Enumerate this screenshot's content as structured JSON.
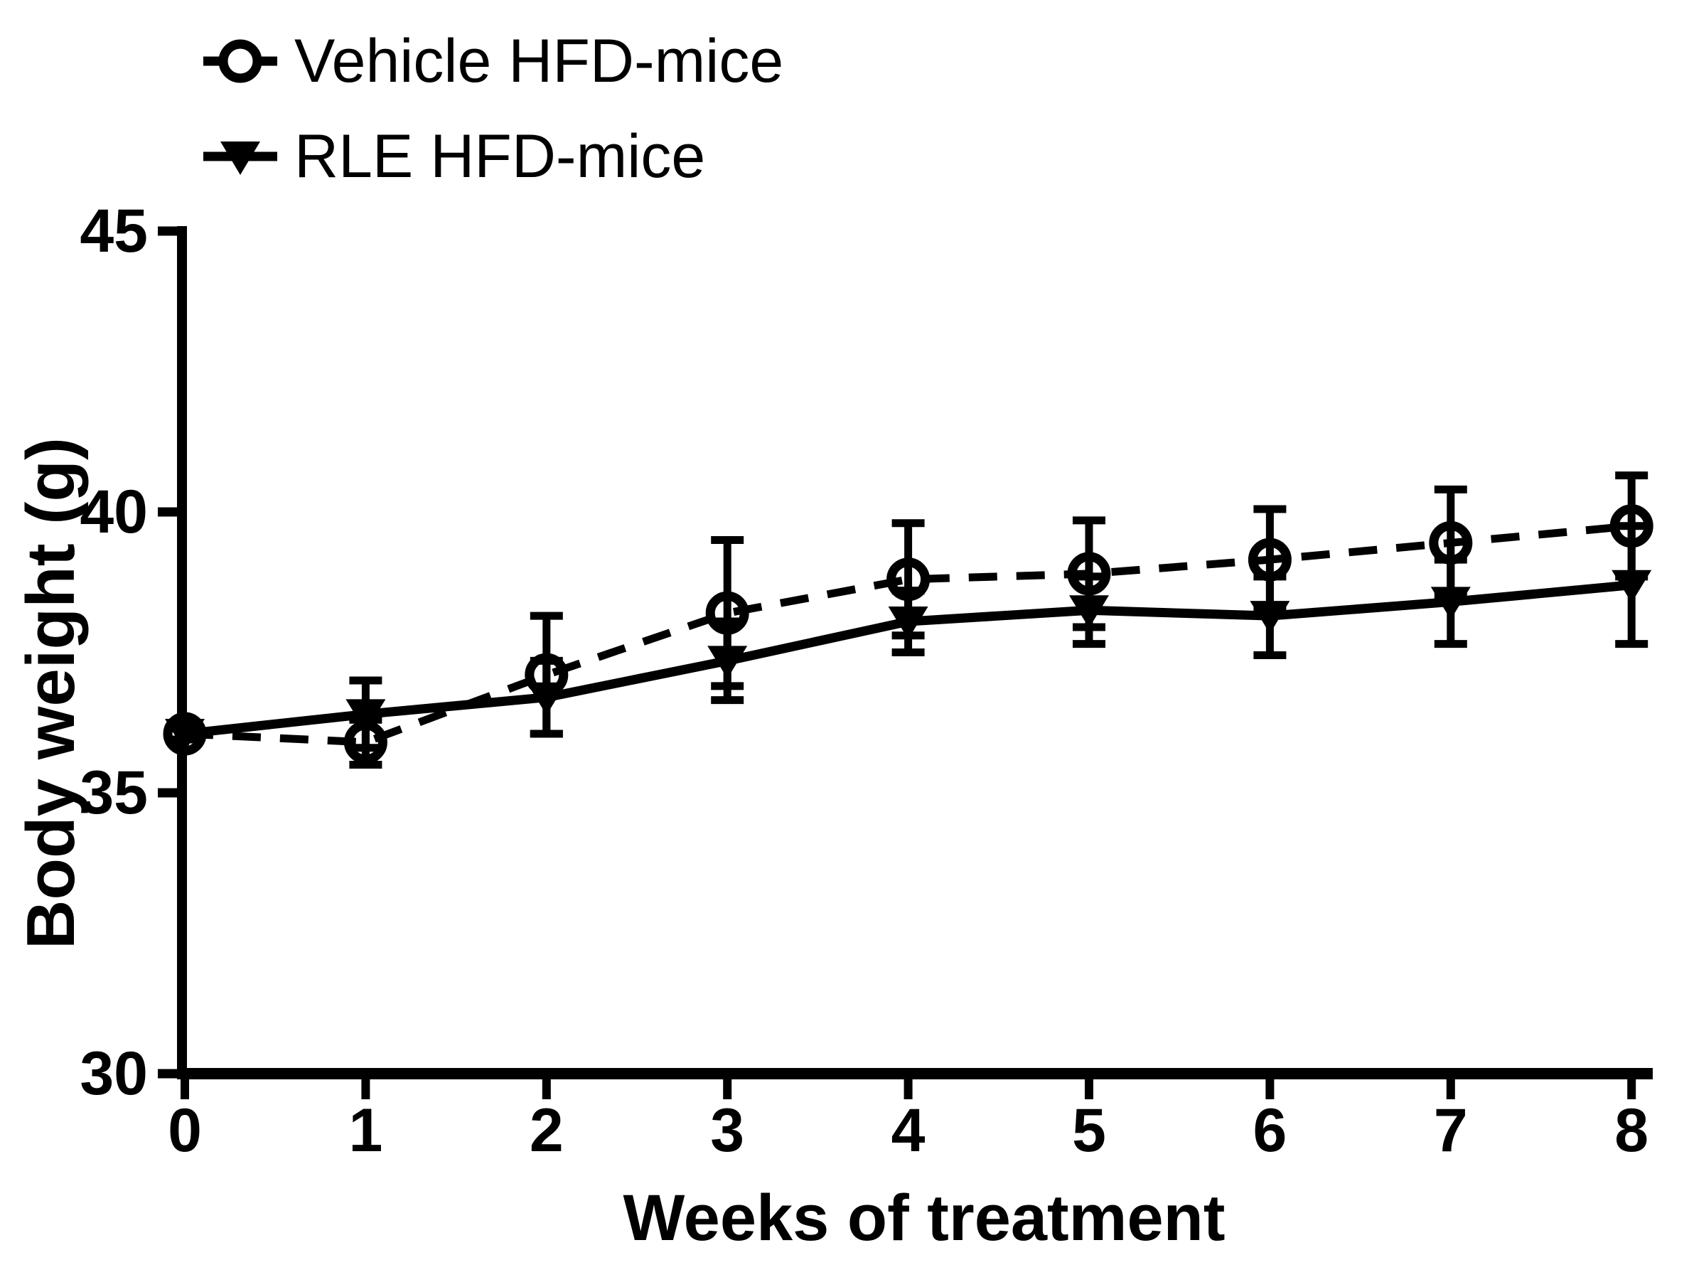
{
  "chart_data": {
    "type": "line",
    "title": "",
    "xlabel": "Weeks of treatment",
    "ylabel": "Body weight (g)",
    "x": [
      0,
      1,
      2,
      3,
      4,
      5,
      6,
      7,
      8
    ],
    "xtick_labels": [
      "0",
      "1",
      "2",
      "3",
      "4",
      "5",
      "6",
      "7",
      "8"
    ],
    "ytick_values": [
      30,
      35,
      40,
      45
    ],
    "ytick_labels": [
      "30",
      "35",
      "40",
      "45"
    ],
    "xlim": [
      0,
      8
    ],
    "ylim": [
      30,
      45
    ],
    "grid": false,
    "legend_position": "top-left",
    "error_bars": "sem, symmetric, with caps",
    "foreground_color": "#000000",
    "background_color": "#ffffff",
    "series": [
      {
        "name": "Vehicle HFD-mice",
        "marker": "open-circle",
        "line_style": "dashed",
        "color": "#000000",
        "values": [
          36.05,
          35.9,
          37.1,
          38.2,
          38.8,
          38.9,
          39.15,
          39.45,
          39.75
        ],
        "sem": [
          0.1,
          0.4,
          1.05,
          1.3,
          1.0,
          0.95,
          0.9,
          0.95,
          0.9
        ]
      },
      {
        "name": "RLE HFD-mice",
        "marker": "filled-triangle-down",
        "line_style": "solid",
        "color": "#000000",
        "values": [
          36.05,
          36.4,
          36.7,
          37.35,
          38.05,
          38.25,
          38.15,
          38.4,
          38.7
        ],
        "sem": [
          0.1,
          0.6,
          0.65,
          0.7,
          0.55,
          0.6,
          0.7,
          0.75,
          1.05
        ]
      }
    ]
  }
}
